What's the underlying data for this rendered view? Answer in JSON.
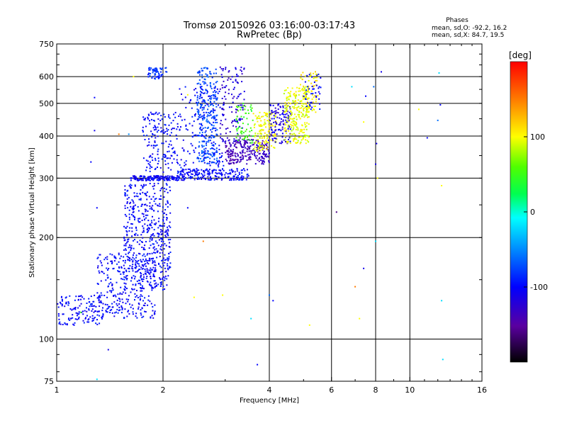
{
  "chart_data": {
    "type": "scatter",
    "title": "Tromsø 20150926 03:16:00-03:17:43",
    "subtitle": "RwPretec (Bp)",
    "xlabel": "Frequency [MHz]",
    "ylabel": "Stationary phase Virtual Height [km]",
    "x_scale": "log2",
    "y_scale": "log",
    "xlim": [
      1,
      16
    ],
    "ylim": [
      75,
      750
    ],
    "x_ticks": [
      1,
      2,
      4,
      6,
      8,
      10,
      16
    ],
    "y_ticks": [
      75,
      100,
      200,
      300,
      400,
      500,
      600,
      750
    ],
    "grid": true,
    "color_axis": {
      "label": "[deg]",
      "range": [
        -200,
        200
      ],
      "ticks": [
        100,
        0,
        -100
      ],
      "colormap": "rainbow"
    },
    "annotation": {
      "heading": "Phases",
      "line1": "mean, sd,O: -92.2, 16.2",
      "line2": "mean, sd,X:  84.7, 19.5"
    },
    "clusters": [
      {
        "x": [
          1.0,
          1.35
        ],
        "y": [
          110,
          135
        ],
        "phase": -100,
        "count": 140
      },
      {
        "x": [
          1.3,
          1.9
        ],
        "y": [
          115,
          180
        ],
        "phase": -100,
        "count": 330
      },
      {
        "x": [
          1.55,
          1.85
        ],
        "y": [
          150,
          290
        ],
        "phase": -100,
        "count": 260
      },
      {
        "x": [
          1.85,
          2.1
        ],
        "y": [
          140,
          290
        ],
        "phase": -100,
        "count": 230
      },
      {
        "x": [
          1.62,
          2.3
        ],
        "y": [
          295,
          305
        ],
        "phase": -105,
        "count": 160
      },
      {
        "x": [
          2.2,
          3.5
        ],
        "y": [
          296,
          320
        ],
        "phase": -100,
        "count": 200
      },
      {
        "x": [
          1.75,
          2.25
        ],
        "y": [
          310,
          470
        ],
        "phase": -100,
        "count": 170
      },
      {
        "x": [
          1.8,
          2.05
        ],
        "y": [
          590,
          640
        ],
        "phase": -85,
        "count": 60
      },
      {
        "x": [
          2.5,
          2.85
        ],
        "y": [
          330,
          640
        ],
        "phase": -75,
        "count": 280
      },
      {
        "x": [
          2.2,
          3.0
        ],
        "y": [
          310,
          560
        ],
        "phase": -100,
        "count": 150
      },
      {
        "x": [
          3.0,
          3.6
        ],
        "y": [
          330,
          390
        ],
        "phase": -140,
        "count": 160
      },
      {
        "x": [
          2.9,
          3.4
        ],
        "y": [
          380,
          640
        ],
        "phase": -120,
        "count": 120
      },
      {
        "x": [
          3.2,
          3.6
        ],
        "y": [
          380,
          500
        ],
        "phase": 50,
        "count": 60
      },
      {
        "x": [
          3.6,
          4.0
        ],
        "y": [
          330,
          390
        ],
        "phase": -130,
        "count": 90
      },
      {
        "x": [
          3.6,
          4.2
        ],
        "y": [
          360,
          470
        ],
        "phase": 100,
        "count": 140
      },
      {
        "x": [
          4.0,
          4.6
        ],
        "y": [
          380,
          500
        ],
        "phase": -115,
        "count": 120
      },
      {
        "x": [
          4.4,
          5.2
        ],
        "y": [
          380,
          560
        ],
        "phase": 95,
        "count": 250
      },
      {
        "x": [
          4.9,
          5.5
        ],
        "y": [
          470,
          620
        ],
        "phase": 105,
        "count": 70
      },
      {
        "x": [
          5.0,
          5.6
        ],
        "y": [
          480,
          610
        ],
        "phase": -100,
        "count": 40
      }
    ],
    "scatter_isolated": [
      {
        "x": 1.12,
        "y": 110,
        "phase": -100
      },
      {
        "x": 1.17,
        "y": 120,
        "phase": 50
      },
      {
        "x": 1.28,
        "y": 520,
        "phase": -100
      },
      {
        "x": 1.28,
        "y": 415,
        "phase": -110
      },
      {
        "x": 1.25,
        "y": 335,
        "phase": -100
      },
      {
        "x": 1.3,
        "y": 76,
        "phase": -20
      },
      {
        "x": 1.3,
        "y": 245,
        "phase": -100
      },
      {
        "x": 1.4,
        "y": 93,
        "phase": -110
      },
      {
        "x": 1.5,
        "y": 405,
        "phase": 150
      },
      {
        "x": 1.6,
        "y": 405,
        "phase": -50
      },
      {
        "x": 1.65,
        "y": 600,
        "phase": 100
      },
      {
        "x": 2.35,
        "y": 530,
        "phase": 100
      },
      {
        "x": 2.35,
        "y": 245,
        "phase": -100
      },
      {
        "x": 2.45,
        "y": 133,
        "phase": 100
      },
      {
        "x": 2.5,
        "y": 75,
        "phase": 100
      },
      {
        "x": 2.6,
        "y": 195,
        "phase": 150
      },
      {
        "x": 2.95,
        "y": 135,
        "phase": 100
      },
      {
        "x": 3.55,
        "y": 115,
        "phase": -20
      },
      {
        "x": 3.7,
        "y": 84,
        "phase": -100
      },
      {
        "x": 4.2,
        "y": 405,
        "phase": -110
      },
      {
        "x": 4.0,
        "y": 135,
        "phase": -60
      },
      {
        "x": 4.1,
        "y": 130,
        "phase": -100
      },
      {
        "x": 5.2,
        "y": 110,
        "phase": 100
      },
      {
        "x": 6.2,
        "y": 238,
        "phase": -160
      },
      {
        "x": 6.85,
        "y": 560,
        "phase": -20
      },
      {
        "x": 7.0,
        "y": 143,
        "phase": 150
      },
      {
        "x": 7.2,
        "y": 115,
        "phase": 100
      },
      {
        "x": 7.4,
        "y": 162,
        "phase": -110
      },
      {
        "x": 7.4,
        "y": 440,
        "phase": 100
      },
      {
        "x": 7.5,
        "y": 525,
        "phase": -100
      },
      {
        "x": 7.9,
        "y": 560,
        "phase": -60
      },
      {
        "x": 8.0,
        "y": 195,
        "phase": -20
      },
      {
        "x": 8.0,
        "y": 330,
        "phase": -110
      },
      {
        "x": 8.05,
        "y": 380,
        "phase": -110
      },
      {
        "x": 8.1,
        "y": 300,
        "phase": 100
      },
      {
        "x": 8.3,
        "y": 620,
        "phase": -110
      },
      {
        "x": 10.6,
        "y": 480,
        "phase": 100
      },
      {
        "x": 11.2,
        "y": 395,
        "phase": -100
      },
      {
        "x": 12.0,
        "y": 445,
        "phase": -60
      },
      {
        "x": 12.1,
        "y": 615,
        "phase": -20
      },
      {
        "x": 12.2,
        "y": 495,
        "phase": -100
      },
      {
        "x": 12.3,
        "y": 285,
        "phase": 100
      },
      {
        "x": 12.3,
        "y": 130,
        "phase": -20
      },
      {
        "x": 12.4,
        "y": 87,
        "phase": -20
      }
    ]
  }
}
